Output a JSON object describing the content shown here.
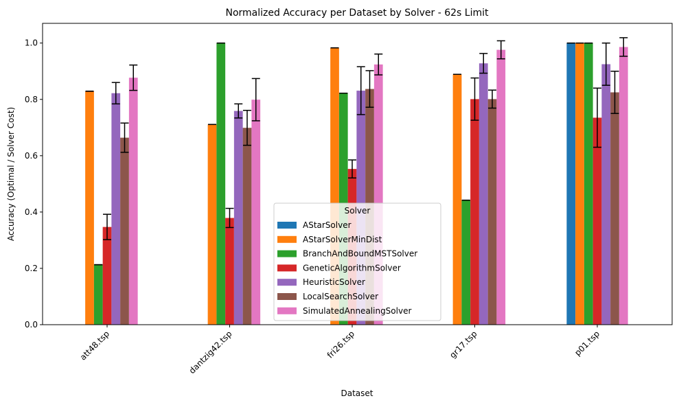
{
  "chart_data": {
    "type": "bar",
    "title": "Normalized Accuracy per Dataset by Solver - 62s Limit",
    "xlabel": "Dataset",
    "ylabel": "Accuracy (Optimal / Solver Cost)",
    "ylim": [
      0,
      1.07
    ],
    "yticks": [
      0.0,
      0.2,
      0.4,
      0.6,
      0.8,
      1.0
    ],
    "ytick_labels": [
      "0.0",
      "0.2",
      "0.4",
      "0.6",
      "0.8",
      "1.0"
    ],
    "categories": [
      "att48.tsp",
      "dantzig42.tsp",
      "fri26.tsp",
      "gr17.tsp",
      "p01.tsp"
    ],
    "grid": false,
    "legend": {
      "title": "Solver",
      "placement": "lower-center"
    },
    "series": [
      {
        "name": "AStarSolver",
        "color": "#1f77b4",
        "values": [
          0.0,
          0.0,
          0.0,
          0.0,
          1.0
        ],
        "errors": [
          0,
          0,
          0,
          0,
          0
        ]
      },
      {
        "name": "AStarSolverMinDist",
        "color": "#ff7f0e",
        "values": [
          0.829,
          0.711,
          0.983,
          0.889,
          1.0
        ],
        "errors": [
          0,
          0,
          0,
          0,
          0
        ]
      },
      {
        "name": "BranchAndBoundMSTSolver",
        "color": "#2ca02c",
        "values": [
          0.213,
          1.0,
          0.822,
          0.442,
          1.0
        ],
        "errors": [
          0,
          0,
          0,
          0,
          0
        ]
      },
      {
        "name": "GeneticAlgorithmSolver",
        "color": "#d62728",
        "values": [
          0.347,
          0.379,
          0.553,
          0.801,
          0.735
        ],
        "errors": [
          0.045,
          0.034,
          0.032,
          0.075,
          0.105
        ]
      },
      {
        "name": "HeuristicSolver",
        "color": "#9467bd",
        "values": [
          0.822,
          0.759,
          0.831,
          0.928,
          0.925
        ],
        "errors": [
          0.038,
          0.025,
          0.085,
          0.035,
          0.075
        ]
      },
      {
        "name": "LocalSearchSolver",
        "color": "#8c564b",
        "values": [
          0.664,
          0.699,
          0.837,
          0.801,
          0.825
        ],
        "errors": [
          0.052,
          0.062,
          0.065,
          0.032,
          0.075
        ]
      },
      {
        "name": "SimulatedAnnealingSolver",
        "color": "#e377c2",
        "values": [
          0.877,
          0.799,
          0.924,
          0.976,
          0.986
        ],
        "errors": [
          0.045,
          0.075,
          0.037,
          0.032,
          0.033
        ]
      }
    ]
  }
}
